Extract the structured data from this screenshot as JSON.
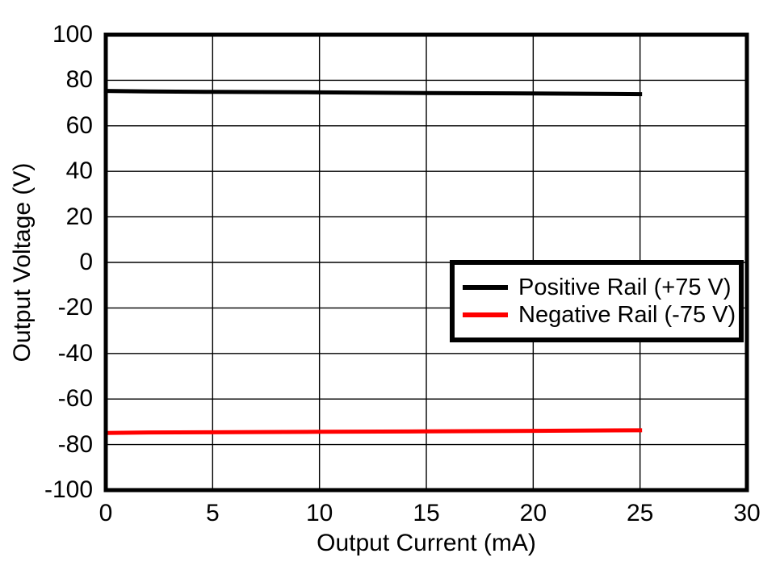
{
  "figure": {
    "background": "#FFFFFF"
  },
  "colors": {
    "axis_frame": "#000000",
    "gridline": "#000000",
    "positive_rail": "#000000",
    "negative_rail": "#FF0000"
  },
  "chart_data": {
    "type": "line",
    "title": "",
    "xlabel": "Output Current (mA)",
    "ylabel": "Output Voltage (V)",
    "xlim": [
      0,
      30
    ],
    "ylim": [
      -100,
      100
    ],
    "xticks": [
      0,
      5,
      10,
      15,
      20,
      25,
      30
    ],
    "yticks": [
      100,
      80,
      60,
      40,
      20,
      0,
      -20,
      -40,
      -60,
      -80,
      -100
    ],
    "grid": true,
    "legend_position": "center-right",
    "series": [
      {
        "name": "Positive Rail (+75 V)",
        "color": "#000000",
        "line_width": 5,
        "x": [
          0,
          2,
          5,
          10,
          15,
          20,
          25
        ],
        "y": [
          75.3,
          75.1,
          74.9,
          74.7,
          74.4,
          74.2,
          73.9
        ]
      },
      {
        "name": "Negative Rail (-75 V)",
        "color": "#FF0000",
        "line_width": 5,
        "x": [
          0,
          2,
          5,
          10,
          15,
          20,
          25
        ],
        "y": [
          -74.9,
          -74.7,
          -74.6,
          -74.4,
          -74.2,
          -74.0,
          -73.7
        ]
      }
    ]
  }
}
